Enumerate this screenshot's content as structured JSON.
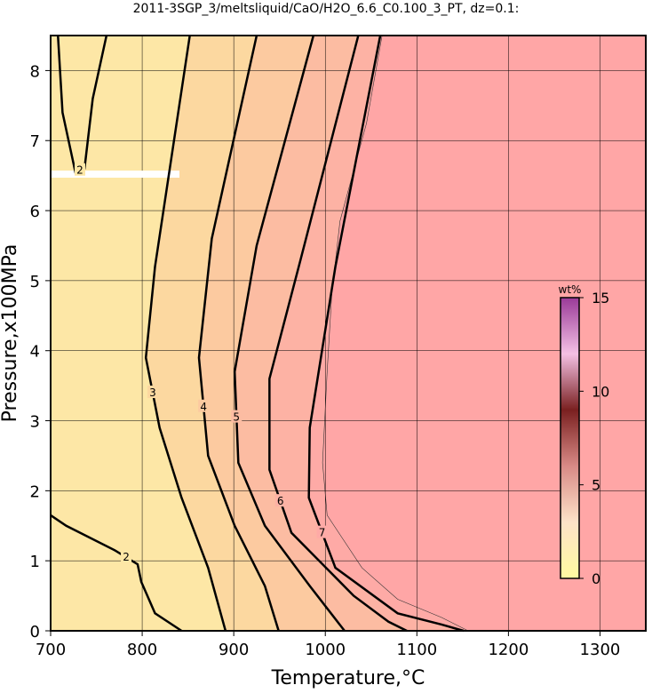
{
  "chart_data": {
    "type": "contour",
    "title": "2011-3SGP_3/meltsliquid/CaO/H2O_6.6_C0.100_3_PT, dz=0.1:",
    "xlabel": "Temperature,°C",
    "ylabel": "Pressure,x100MPa",
    "xlim": [
      700,
      1350
    ],
    "ylim": [
      0,
      8.5
    ],
    "xticks": [
      700,
      800,
      900,
      1000,
      1100,
      1200,
      1300
    ],
    "yticks": [
      0,
      1,
      2,
      3,
      4,
      5,
      6,
      7,
      8
    ],
    "grid": true,
    "background": "#fde7a6",
    "melt_region": {
      "color": "#ffa6a6",
      "x": [
        1062,
        1045,
        1016,
        1007,
        1002,
        997,
        1002,
        1040,
        1079,
        1127,
        1156
      ],
      "y": [
        8.5,
        7.25,
        5.85,
        4.8,
        3.7,
        2.4,
        1.65,
        0.9,
        0.45,
        0.19,
        0
      ]
    },
    "contours": [
      {
        "level": 2,
        "x": [
          708,
          713,
          727,
          737,
          746,
          761
        ],
        "y": [
          8.5,
          7.4,
          6.55,
          6.6,
          7.6,
          8.5
        ]
      },
      {
        "level": 2,
        "x": [
          700,
          717,
          770,
          795,
          799,
          814,
          843
        ],
        "y": [
          1.65,
          1.5,
          1.15,
          0.95,
          0.7,
          0.25,
          0
        ]
      },
      {
        "level": 3,
        "fill": "#fcd8a0",
        "x": [
          852,
          814,
          804,
          819,
          843,
          872,
          891
        ],
        "y": [
          8.5,
          5.2,
          3.9,
          2.9,
          1.9,
          0.9,
          0
        ]
      },
      {
        "level": 4,
        "fill": "#fccaa0",
        "x": [
          925,
          876,
          862,
          872,
          901,
          934,
          949
        ],
        "y": [
          8.5,
          5.6,
          3.9,
          2.5,
          1.5,
          0.64,
          0
        ]
      },
      {
        "level": 5,
        "fill": "#fcbca2",
        "x": [
          987,
          925,
          901,
          905,
          934,
          983,
          1021
        ],
        "y": [
          8.5,
          5.5,
          3.7,
          2.4,
          1.5,
          0.64,
          0
        ]
      },
      {
        "level": 6,
        "fill": "#fdb2a4",
        "x": [
          1036,
          973,
          939,
          939,
          963,
          1031,
          1069,
          1089
        ],
        "y": [
          8.5,
          5.3,
          3.6,
          2.3,
          1.4,
          0.5,
          0.13,
          0
        ]
      },
      {
        "level": 7,
        "fill": "#feaaa6",
        "x": [
          1060,
          1011,
          983,
          982,
          1011,
          1079,
          1127,
          1151
        ],
        "y": [
          8.5,
          5.2,
          2.9,
          1.9,
          0.9,
          0.25,
          0.09,
          0
        ]
      }
    ],
    "colorbar": {
      "label": "wt%",
      "lim": [
        0,
        15
      ],
      "ticks": [
        0,
        5,
        10,
        15
      ],
      "colors": [
        "#fffaa0",
        "#fde2c8",
        "#d88a86",
        "#7a2020",
        "#f4c0e4",
        "#9a3a98"
      ]
    }
  }
}
